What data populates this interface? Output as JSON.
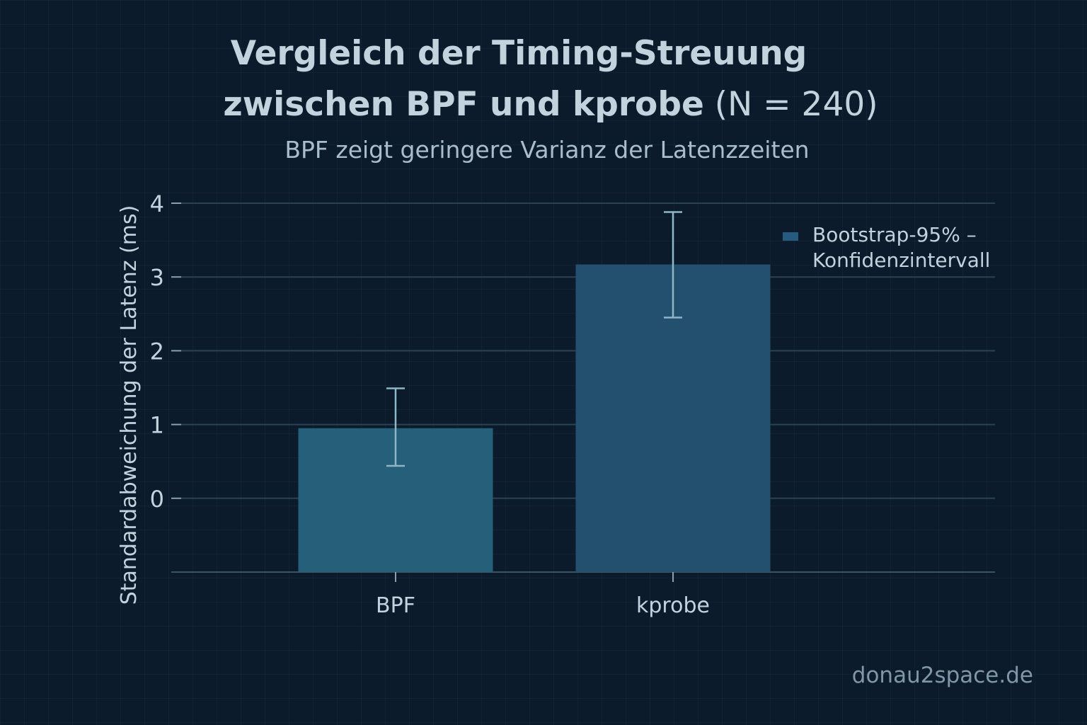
{
  "header": {
    "title_line1": "Vergleich der Timing-Streuung",
    "title_line2_bold": "zwischen BPF und kprobe",
    "title_line2_light": " (N = 240)",
    "subtitle": "BPF zeigt geringere Varianz der Latenzzeiten"
  },
  "chart_data": {
    "type": "bar",
    "title": "Vergleich der Timing-Streuung zwischen BPF und kprobe (N = 240)",
    "subtitle": "BPF zeigt geringere Varianz der Latenzzeiten",
    "categories": [
      "BPF",
      "kprobe"
    ],
    "values": [
      0.95,
      3.17
    ],
    "error_low": [
      0.44,
      2.45
    ],
    "error_high": [
      1.49,
      3.88
    ],
    "bar_colors": [
      "#255f7a",
      "#22506e"
    ],
    "xlabel": "",
    "ylabel": "Standardabweichung der Latenz (ms)",
    "ylim": [
      -1,
      4
    ],
    "yticks": [
      0,
      1,
      2,
      3,
      4
    ],
    "grid": true,
    "legend": {
      "position": "top-right",
      "entries": [
        "Bootstrap-95% – Konfidenzintervall"
      ]
    }
  },
  "legend_lines": [
    "Bootstrap-95% –",
    "Konfidenzintervall"
  ],
  "watermark": "donau2space.de",
  "colors": {
    "background": "#0c1b2b",
    "text": "#c3d3de",
    "grid": "#2a4254",
    "error_bar": "#8fb6c6"
  }
}
